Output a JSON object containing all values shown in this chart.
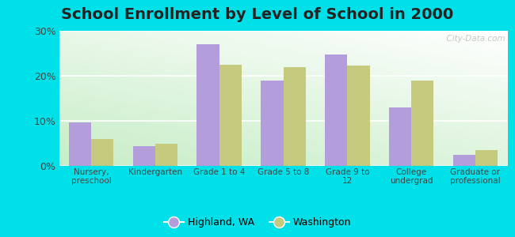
{
  "title": "School Enrollment by Level of School in 2000",
  "categories": [
    "Nursery,\npreschool",
    "Kindergarten",
    "Grade 1 to 4",
    "Grade 5 to 8",
    "Grade 9 to\n12",
    "College\nundergrad",
    "Graduate or\nprofessional"
  ],
  "highland_values": [
    9.7,
    4.3,
    27.0,
    19.0,
    24.7,
    13.0,
    2.5
  ],
  "washington_values": [
    6.0,
    5.0,
    22.5,
    22.0,
    22.3,
    19.0,
    3.5
  ],
  "highland_color": "#b39ddb",
  "washington_color": "#c5ca7e",
  "background_outer": "#00e0e8",
  "plot_bg_top": "#e8f5e9",
  "plot_bg_bottom": "#c8e6c9",
  "ylim": [
    0,
    30
  ],
  "yticks": [
    0,
    10,
    20,
    30
  ],
  "ytick_labels": [
    "0%",
    "10%",
    "20%",
    "30%"
  ],
  "legend_labels": [
    "Highland, WA",
    "Washington"
  ],
  "title_fontsize": 14,
  "bar_width": 0.35,
  "watermark_text": "  City-Data.com"
}
